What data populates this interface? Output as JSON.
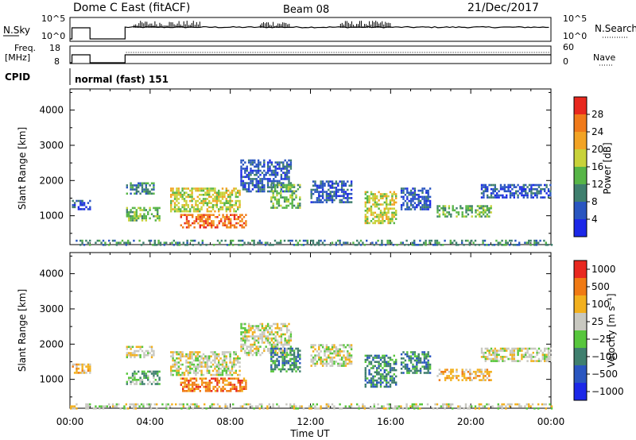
{
  "header": {
    "station": "Dome C East (fitACF)",
    "beam": "Beam 08",
    "date": "21/Dec/2017"
  },
  "strip_labels": {
    "nsky": "N.Sky",
    "nsky_ticks": [
      "10^5",
      "10^0"
    ],
    "nsearch": "N.Search",
    "nsearch_ticks": [
      "10^5",
      "10^0"
    ],
    "freq": "Freq.",
    "freq_unit": "[MHz]",
    "freq_ticks": [
      "18",
      "8"
    ],
    "nave": "Nave",
    "nave_ticks": [
      "60",
      "0"
    ],
    "cpid": "CPID",
    "cpid_value": "normal (fast) 151"
  },
  "chart_data": [
    {
      "type": "heatmap",
      "panel": "power",
      "ylabel": "Slant Range [km]",
      "ylim": [
        180,
        4600
      ],
      "yticks": [
        "1000",
        "2000",
        "3000",
        "4000"
      ],
      "xlim": [
        0,
        24
      ],
      "colorbar": {
        "label": "Power [dB]",
        "ticks": [
          "4",
          "8",
          "12",
          "16",
          "20",
          "24",
          "28"
        ],
        "colors": [
          "#1c28e8",
          "#2a56c0",
          "#3f7f6e",
          "#57b547",
          "#c8d23a",
          "#f2a324",
          "#f07a1a",
          "#e8281e"
        ]
      },
      "regions": [
        {
          "t0": 0.1,
          "t1": 1.0,
          "r0": 1200,
          "r1": 1450,
          "c": 1
        },
        {
          "t0": 2.8,
          "t1": 4.2,
          "r0": 1650,
          "r1": 1950,
          "c": 2
        },
        {
          "t0": 2.8,
          "t1": 4.5,
          "r0": 850,
          "r1": 1250,
          "c": 3
        },
        {
          "t0": 5.0,
          "t1": 8.5,
          "r0": 1150,
          "r1": 1800,
          "c": 4
        },
        {
          "t0": 5.5,
          "t1": 8.8,
          "r0": 650,
          "r1": 1050,
          "c": 6
        },
        {
          "t0": 8.5,
          "t1": 11.0,
          "r0": 1700,
          "r1": 2600,
          "c": 1
        },
        {
          "t0": 10.0,
          "t1": 11.5,
          "r0": 1200,
          "r1": 1900,
          "c": 3
        },
        {
          "t0": 12.0,
          "t1": 14.0,
          "r0": 1400,
          "r1": 2000,
          "c": 1
        },
        {
          "t0": 14.7,
          "t1": 16.3,
          "r0": 800,
          "r1": 1700,
          "c": 4
        },
        {
          "t0": 16.5,
          "t1": 18.0,
          "r0": 1200,
          "r1": 1800,
          "c": 1
        },
        {
          "t0": 18.3,
          "t1": 21.0,
          "r0": 950,
          "r1": 1300,
          "c": 3
        },
        {
          "t0": 20.5,
          "t1": 24.0,
          "r0": 1500,
          "r1": 1900,
          "c": 1
        },
        {
          "t0": 0.0,
          "t1": 24.0,
          "r0": 190,
          "r1": 320,
          "c": 2
        }
      ]
    },
    {
      "type": "heatmap",
      "panel": "velocity",
      "ylabel": "Slant Range [km]",
      "ylim": [
        180,
        4600
      ],
      "yticks": [
        "1000",
        "2000",
        "3000",
        "4000"
      ],
      "xlim": [
        0,
        24
      ],
      "xticks": [
        "00:00",
        "04:00",
        "08:00",
        "12:00",
        "16:00",
        "20:00",
        "00:00"
      ],
      "xlabel": "Time UT",
      "colorbar": {
        "label": "Velocity [m s⁻¹]",
        "ticks": [
          "1000",
          "500",
          "100",
          "25",
          "−25",
          "−100",
          "−500",
          "−1000"
        ],
        "colors": [
          "#1c28e8",
          "#2a56c0",
          "#3f7f6e",
          "#57c63c",
          "#c8c8c0",
          "#f2b01e",
          "#f07a14",
          "#e82820"
        ]
      },
      "regions": [
        {
          "t0": 0.1,
          "t1": 1.0,
          "r0": 1200,
          "r1": 1450,
          "c": 5
        },
        {
          "t0": 2.8,
          "t1": 4.2,
          "r0": 1650,
          "r1": 1950,
          "c": 4
        },
        {
          "t0": 2.8,
          "t1": 4.5,
          "r0": 850,
          "r1": 1250,
          "c": 3
        },
        {
          "t0": 5.0,
          "t1": 8.5,
          "r0": 1150,
          "r1": 1800,
          "c": 4
        },
        {
          "t0": 5.5,
          "t1": 8.8,
          "r0": 650,
          "r1": 1050,
          "c": 6
        },
        {
          "t0": 8.5,
          "t1": 11.0,
          "r0": 1700,
          "r1": 2600,
          "c": 4
        },
        {
          "t0": 10.0,
          "t1": 11.5,
          "r0": 1200,
          "r1": 1900,
          "c": 2
        },
        {
          "t0": 12.0,
          "t1": 14.0,
          "r0": 1400,
          "r1": 2000,
          "c": 4
        },
        {
          "t0": 14.7,
          "t1": 16.3,
          "r0": 800,
          "r1": 1700,
          "c": 2
        },
        {
          "t0": 16.5,
          "t1": 18.0,
          "r0": 1200,
          "r1": 1800,
          "c": 2
        },
        {
          "t0": 18.3,
          "t1": 21.0,
          "r0": 950,
          "r1": 1300,
          "c": 5
        },
        {
          "t0": 20.5,
          "t1": 24.0,
          "r0": 1500,
          "r1": 1900,
          "c": 4
        },
        {
          "t0": 0.0,
          "t1": 24.0,
          "r0": 190,
          "r1": 320,
          "c": 4
        }
      ]
    }
  ]
}
